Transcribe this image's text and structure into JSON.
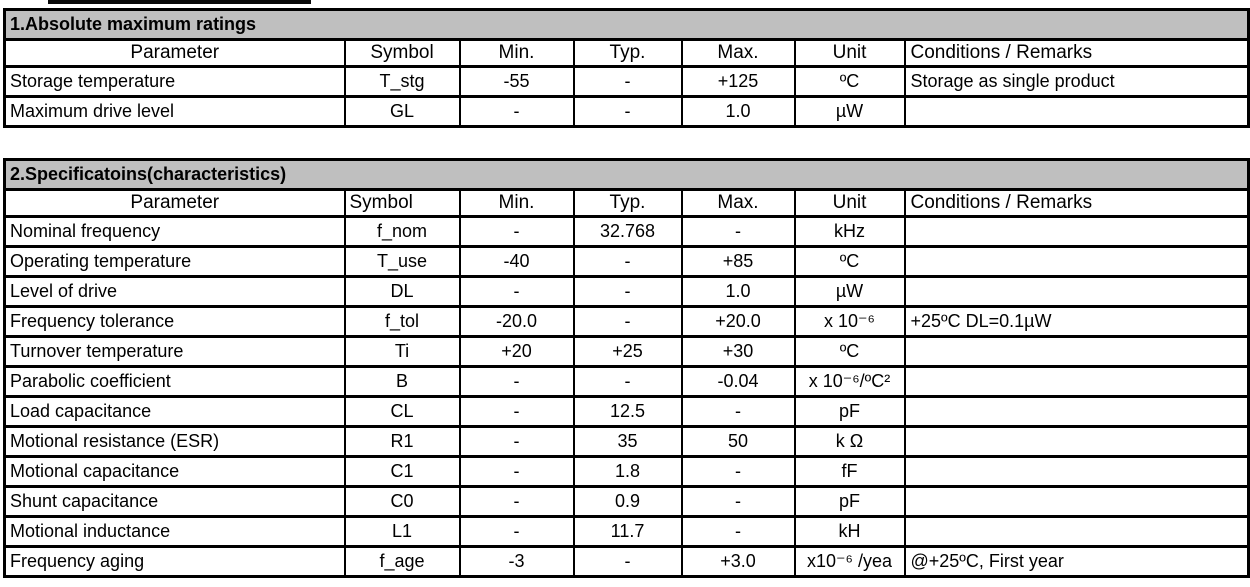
{
  "colors": {
    "background": "#ffffff",
    "title_bar_bg": "#bfbfbf",
    "border": "#000000",
    "text": "#000000"
  },
  "tables": [
    {
      "title": "1.Absolute maximum ratings",
      "columns": [
        "Parameter",
        "Symbol",
        "Min.",
        "Typ.",
        "Max.",
        "Unit",
        "Conditions / Remarks"
      ],
      "rows": [
        [
          "Storage temperature",
          "T_stg",
          "-55",
          "-",
          "+125",
          "ºC",
          "Storage as single product"
        ],
        [
          "Maximum drive level",
          "GL",
          "-",
          "-",
          "1.0",
          "µW",
          ""
        ]
      ]
    },
    {
      "title": "2.Specificatoins(characteristics)",
      "columns": [
        "Parameter",
        "Symbol",
        "Min.",
        "Typ.",
        "Max.",
        "Unit",
        "Conditions / Remarks"
      ],
      "rows": [
        [
          "Nominal frequency",
          "f_nom",
          "-",
          "32.768",
          "-",
          "kHz",
          ""
        ],
        [
          "Operating temperature",
          "T_use",
          "-40",
          "-",
          "+85",
          "ºC",
          ""
        ],
        [
          "Level of drive",
          "DL",
          "-",
          "-",
          "1.0",
          "µW",
          ""
        ],
        [
          "Frequency tolerance",
          "f_tol",
          "-20.0",
          "-",
          "+20.0",
          "x 10⁻⁶",
          "+25ºC DL=0.1µW"
        ],
        [
          "Turnover temperature",
          "Ti",
          "+20",
          "+25",
          "+30",
          "ºC",
          ""
        ],
        [
          "Parabolic coefficient",
          "B",
          "-",
          "-",
          "-0.04",
          "x 10⁻⁶/ºC²",
          ""
        ],
        [
          "Load capacitance",
          "CL",
          "-",
          "12.5",
          "-",
          "pF",
          ""
        ],
        [
          "Motional resistance (ESR)",
          "R1",
          "-",
          "35",
          "50",
          "k Ω",
          ""
        ],
        [
          "Motional capacitance",
          "C1",
          "-",
          "1.8",
          "-",
          "fF",
          ""
        ],
        [
          "Shunt capacitance",
          "C0",
          "-",
          "0.9",
          "-",
          "pF",
          ""
        ],
        [
          "Motional inductance",
          "L1",
          "-",
          "11.7",
          "-",
          "kH",
          ""
        ],
        [
          "Frequency aging",
          "f_age",
          "-3",
          "-",
          "+3.0",
          "x10⁻⁶ /yea",
          "@+25ºC, First year"
        ]
      ]
    }
  ]
}
